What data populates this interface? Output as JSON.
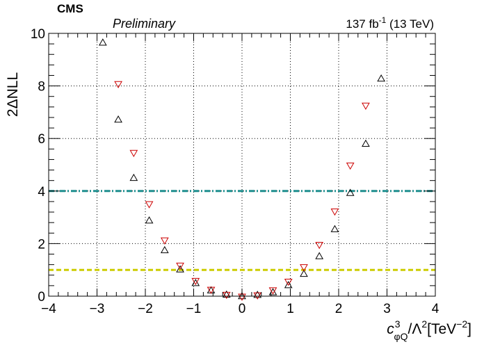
{
  "header": {
    "experiment": "CMS",
    "status": "Preliminary",
    "lumi_value": "137 fb",
    "lumi_exponent": "-1",
    "energy": " (13 TeV)"
  },
  "axes": {
    "ylabel": "2ΔNLL",
    "xlabel_base": "c",
    "xlabel_sup": "3",
    "xlabel_sub": "φQ",
    "xlabel_mid": "/Λ",
    "xlabel_mid_sup": "2",
    "xlabel_unit_open": "[TeV",
    "xlabel_unit_sup": "−2",
    "xlabel_unit_close": "]"
  },
  "chart_data": {
    "type": "scatter",
    "xlim": [
      -4,
      4
    ],
    "ylim": [
      0,
      10
    ],
    "x_ticks": [
      -4,
      -3,
      -2,
      -1,
      0,
      1,
      2,
      3,
      4
    ],
    "x_tick_labels": [
      "−4",
      "−3",
      "−2",
      "−1",
      "0",
      "1",
      "2",
      "3",
      "4"
    ],
    "y_ticks": [
      0,
      2,
      4,
      6,
      8,
      10
    ],
    "y_tick_labels": [
      "0",
      "2",
      "4",
      "6",
      "8",
      "10"
    ],
    "grid": true,
    "series": [
      {
        "marker": "triangle-up",
        "color": "#000000",
        "points": [
          [
            -2.88,
            9.65
          ],
          [
            -2.56,
            6.72
          ],
          [
            -2.24,
            4.5
          ],
          [
            -1.92,
            2.88
          ],
          [
            -1.6,
            1.75
          ],
          [
            -1.28,
            1.02
          ],
          [
            -0.96,
            0.5
          ],
          [
            -0.64,
            0.22
          ],
          [
            -0.32,
            0.06
          ],
          [
            0.0,
            0.0
          ],
          [
            0.32,
            0.05
          ],
          [
            0.64,
            0.15
          ],
          [
            0.96,
            0.42
          ],
          [
            1.28,
            0.85
          ],
          [
            1.6,
            1.52
          ],
          [
            1.92,
            2.55
          ],
          [
            2.24,
            3.93
          ],
          [
            2.56,
            5.8
          ],
          [
            2.88,
            8.28
          ]
        ]
      },
      {
        "marker": "triangle-down",
        "color": "#cc0000",
        "points": [
          [
            -2.56,
            8.07
          ],
          [
            -2.24,
            5.45
          ],
          [
            -1.92,
            3.5
          ],
          [
            -1.6,
            2.12
          ],
          [
            -1.28,
            1.16
          ],
          [
            -0.96,
            0.58
          ],
          [
            -0.64,
            0.24
          ],
          [
            -0.32,
            0.05
          ],
          [
            0.0,
            -0.02
          ],
          [
            0.32,
            0.03
          ],
          [
            0.64,
            0.22
          ],
          [
            0.96,
            0.55
          ],
          [
            1.28,
            1.1
          ],
          [
            1.6,
            1.95
          ],
          [
            1.92,
            3.22
          ],
          [
            2.24,
            4.97
          ],
          [
            2.56,
            7.25
          ]
        ]
      }
    ],
    "reference_lines": [
      {
        "y": 4,
        "color": "#1f8f8f",
        "style": "dash-dot"
      },
      {
        "y": 1,
        "color": "#cccc00",
        "style": "dashed"
      }
    ]
  }
}
